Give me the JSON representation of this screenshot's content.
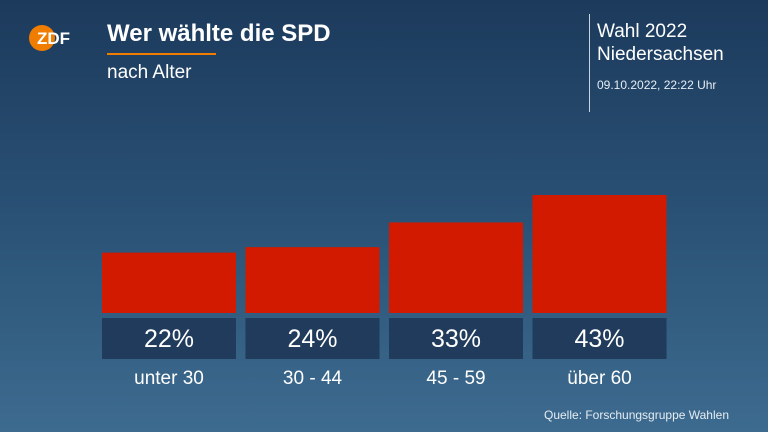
{
  "header": {
    "title": "Wer wählte die SPD",
    "subtitle": "nach Alter",
    "election": [
      "Wahl 2022",
      "Niedersachsen"
    ],
    "timestamp": "09.10.2022, 22:22 Uhr"
  },
  "colors": {
    "bar": "#d11a00",
    "label_box": "#203b5b",
    "accent": "#f07d00"
  },
  "logo": {
    "icon": "zdf-logo-icon",
    "text": "ZDF"
  },
  "chart_data": {
    "type": "bar",
    "title": "Wer wählte die SPD",
    "subtitle": "nach Alter",
    "categories": [
      "unter 30",
      "30 - 44",
      "45 - 59",
      "über 60"
    ],
    "values": [
      22,
      24,
      33,
      43
    ],
    "value_labels": [
      "22%",
      "24%",
      "33%",
      "43%"
    ],
    "unit": "%",
    "ylim": [
      0,
      43
    ],
    "grid": false,
    "legend": "none"
  },
  "footer": {
    "source": "Quelle: Forschungsgruppe Wahlen"
  }
}
